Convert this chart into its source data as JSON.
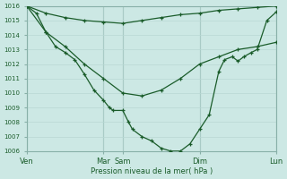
{
  "background_color": "#cce8e4",
  "grid_color_minor": "#b8d8d4",
  "grid_color_major": "#a0c8c4",
  "line_color": "#1a5c2a",
  "text_color": "#1a5c2a",
  "xlabel": "Pression niveau de la mer( hPa )",
  "ylim": [
    1006,
    1016
  ],
  "yticks": [
    1006,
    1007,
    1008,
    1009,
    1010,
    1011,
    1012,
    1013,
    1014,
    1015,
    1016
  ],
  "day_labels": [
    "Ven",
    "Mar",
    "Sam",
    "Dim",
    "Lun"
  ],
  "day_positions": [
    0,
    4,
    5,
    9,
    13
  ],
  "series1_x": [
    0,
    1,
    2,
    3,
    4,
    5,
    6,
    7,
    8,
    9,
    10,
    11,
    12,
    13
  ],
  "series1_y": [
    1016,
    1015.5,
    1015.2,
    1015.0,
    1014.9,
    1014.8,
    1015.0,
    1015.2,
    1015.4,
    1015.5,
    1015.7,
    1015.8,
    1015.9,
    1016.0
  ],
  "series2_x": [
    0,
    1,
    2,
    3,
    4,
    5,
    6,
    7,
    8,
    9,
    10,
    11,
    12,
    13
  ],
  "series2_y": [
    1016,
    1014.2,
    1013.2,
    1012.0,
    1011.0,
    1010.0,
    1009.8,
    1010.2,
    1011.0,
    1012.0,
    1012.5,
    1013.0,
    1013.2,
    1013.5
  ],
  "series3_x": [
    0,
    0.5,
    1,
    1.5,
    2,
    2.5,
    3,
    3.5,
    4,
    4.3,
    4.5,
    5,
    5.3,
    5.5,
    6,
    6.5,
    7,
    7.5,
    8,
    8.5,
    9,
    9.5,
    10,
    10.3,
    10.7,
    11,
    11.3,
    11.7,
    12,
    12.5,
    13
  ],
  "series3_y": [
    1016,
    1015.5,
    1014.2,
    1013.2,
    1012.8,
    1012.3,
    1011.3,
    1010.2,
    1009.5,
    1009.0,
    1008.8,
    1008.8,
    1008.0,
    1007.5,
    1007.0,
    1006.7,
    1006.2,
    1006.0,
    1006.0,
    1006.5,
    1007.5,
    1008.5,
    1011.5,
    1012.3,
    1012.5,
    1012.2,
    1012.5,
    1012.8,
    1013.0,
    1015.0,
    1015.6
  ]
}
